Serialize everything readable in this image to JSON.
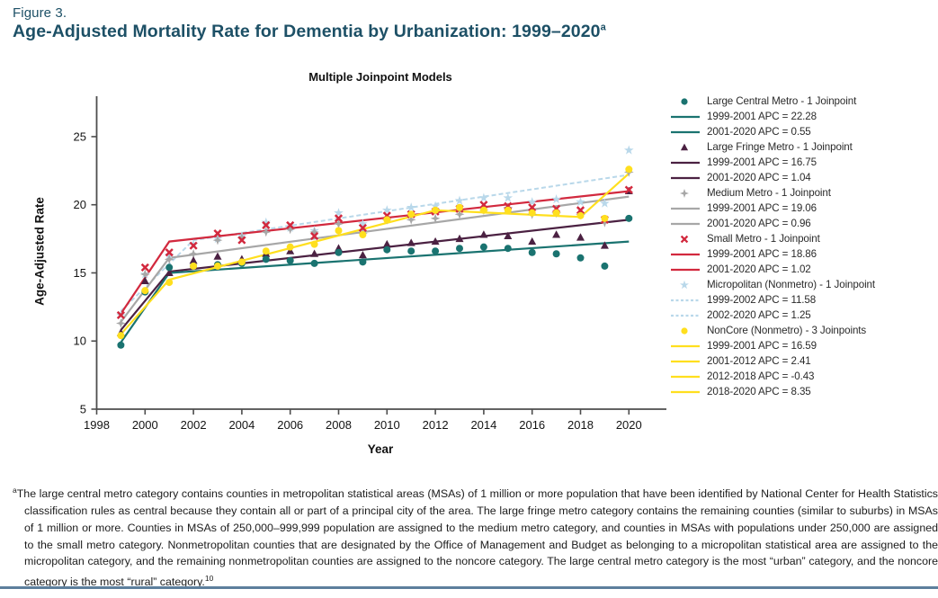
{
  "figure_label": "Figure 3.",
  "title": "Age-Adjusted Mortality Rate for Dementia by Urbanization: 1999–2020",
  "title_superscript": "a",
  "chart_data": {
    "type": "scatter",
    "title": "Multiple Joinpoint Models",
    "xlabel": "Year",
    "ylabel": "Age-Adjusted Rate",
    "x_ticks": [
      1998,
      2000,
      2002,
      2004,
      2006,
      2008,
      2010,
      2012,
      2014,
      2016,
      2018,
      2020
    ],
    "y_ticks": [
      5,
      10,
      15,
      20,
      25
    ],
    "xlim": [
      1998,
      2021.5
    ],
    "ylim": [
      5,
      28
    ],
    "grid": false,
    "legend_position": "right",
    "years": [
      1999,
      2000,
      2001,
      2002,
      2003,
      2004,
      2005,
      2006,
      2007,
      2008,
      2009,
      2010,
      2011,
      2012,
      2013,
      2014,
      2015,
      2016,
      2017,
      2018,
      2019,
      2020
    ],
    "series": [
      {
        "name": "Large Central Metro",
        "legend_label": "Large Central Metro - 1 Joinpoint",
        "marker": "circle",
        "color": "#1a7370",
        "dashed": false,
        "values": [
          9.7,
          13.6,
          15.4,
          15.5,
          15.6,
          15.7,
          16.0,
          15.9,
          15.7,
          16.5,
          15.8,
          16.7,
          16.6,
          16.6,
          16.8,
          16.9,
          16.8,
          16.5,
          16.4,
          16.1,
          15.5,
          19.0
        ],
        "fitted_line": [
          [
            1999,
            9.9
          ],
          [
            2001,
            15.0
          ],
          [
            2020,
            17.3
          ]
        ],
        "apc_labels": [
          "1999-2001 APC = 22.28",
          "2001-2020 APC = 0.55"
        ]
      },
      {
        "name": "Large Fringe Metro",
        "legend_label": "Large Fringe Metro - 1 Joinpoint",
        "marker": "triangle",
        "color": "#4b2142",
        "dashed": false,
        "values": [
          10.6,
          14.4,
          15.0,
          15.9,
          16.2,
          16.0,
          16.4,
          16.6,
          16.4,
          16.8,
          16.3,
          17.1,
          17.2,
          17.3,
          17.5,
          17.8,
          17.7,
          17.3,
          17.8,
          17.6,
          17.0,
          21.0
        ],
        "fitted_line": [
          [
            1999,
            10.8
          ],
          [
            2001,
            15.1
          ],
          [
            2020,
            18.9
          ]
        ],
        "apc_labels": [
          "1999-2001 APC = 16.75",
          "2001-2020 APC = 1.04"
        ]
      },
      {
        "name": "Medium Metro",
        "legend_label": "Medium Metro - 1 Joinpoint",
        "marker": "star4",
        "color": "#a7a7a7",
        "dashed": false,
        "values": [
          11.3,
          14.9,
          16.0,
          16.4,
          17.4,
          17.6,
          18.0,
          18.2,
          18.0,
          18.6,
          17.9,
          18.9,
          18.9,
          19.0,
          19.3,
          19.6,
          19.8,
          19.3,
          19.4,
          19.3,
          18.7,
          22.4
        ],
        "fitted_line": [
          [
            1999,
            11.4
          ],
          [
            2001,
            16.1
          ],
          [
            2020,
            20.6
          ]
        ],
        "apc_labels": [
          "1999-2001 APC = 19.06",
          "2001-2020 APC = 0.96"
        ]
      },
      {
        "name": "Small Metro",
        "legend_label": "Small Metro - 1 Joinpoint",
        "marker": "x",
        "color": "#d2293e",
        "dashed": false,
        "values": [
          11.9,
          15.4,
          16.5,
          17.0,
          17.9,
          17.4,
          18.5,
          18.5,
          17.7,
          19.0,
          18.3,
          19.2,
          19.3,
          19.5,
          19.7,
          20.0,
          19.9,
          19.8,
          19.7,
          19.6,
          18.9,
          21.1
        ],
        "fitted_line": [
          [
            1999,
            12.0
          ],
          [
            2001,
            17.3
          ],
          [
            2020,
            21.0
          ]
        ],
        "apc_labels": [
          "1999-2001 APC = 18.86",
          "2001-2020 APC = 1.02"
        ]
      },
      {
        "name": "Micropolitan (Nonmetro)",
        "legend_label": "Micropolitan (Nonmetro) - 1 Joinpoint",
        "marker": "star5",
        "color": "#b9d8ea",
        "dashed": true,
        "values": [
          11.9,
          14.9,
          16.3,
          17.1,
          17.5,
          17.7,
          18.7,
          18.3,
          18.1,
          19.4,
          18.6,
          19.6,
          19.8,
          19.9,
          20.3,
          20.5,
          20.5,
          20.2,
          20.4,
          20.2,
          20.1,
          24.0
        ],
        "fitted_line": [
          [
            1999,
            12.2
          ],
          [
            2002,
            17.4
          ],
          [
            2020,
            22.2
          ]
        ],
        "apc_labels": [
          "1999-2002 APC = 11.58",
          "2002-2020 APC = 1.25"
        ]
      },
      {
        "name": "NonCore (Nonmetro)",
        "legend_label": "NonCore (Nonmetro) - 3 Joinpoints",
        "marker": "circle",
        "color": "#ffdf1e",
        "dashed": false,
        "values": [
          10.4,
          13.7,
          14.3,
          15.5,
          15.5,
          15.8,
          16.6,
          16.9,
          17.1,
          18.1,
          17.8,
          18.9,
          19.3,
          19.6,
          19.8,
          19.6,
          19.6,
          19.4,
          19.4,
          19.2,
          19.0,
          22.6
        ],
        "fitted_line": [
          [
            1999,
            10.5
          ],
          [
            2001,
            14.5
          ],
          [
            2012,
            19.6
          ],
          [
            2018,
            19.1
          ],
          [
            2020,
            22.3
          ]
        ],
        "apc_labels": [
          "1999-2001 APC = 16.59",
          "2001-2012 APC = 2.41",
          "2012-2018 APC = -0.43",
          "2018-2020 APC = 8.35"
        ]
      }
    ]
  },
  "footnote": {
    "marker": "a",
    "text": "The large central metro category contains counties in metropolitan statistical areas (MSAs) of 1 million or more population that have been identified by National Center for Health Statistics classification rules as central because they contain all or part of a principal city of the area. The large fringe metro category contains the remaining counties (similar to suburbs) in MSAs of 1 million or more. Counties in MSAs of 250,000–999,999 population are assigned to the medium metro category, and counties in MSAs with populations under 250,000 are assigned to the small metro category. Nonmetropolitan counties that are designated by the Office of Management and Budget as belonging to a micropolitan statistical area are assigned to the micropolitan category, and the remaining nonmetropolitan counties are assigned to the noncore category. The large central metro category is the most “urban” category, and the noncore category is the most “rural” category.",
    "reference": "10"
  },
  "colors": {
    "title": "#1d5066",
    "axis": "#4d4d4d",
    "bottom_rule": "#5d7f9d"
  }
}
